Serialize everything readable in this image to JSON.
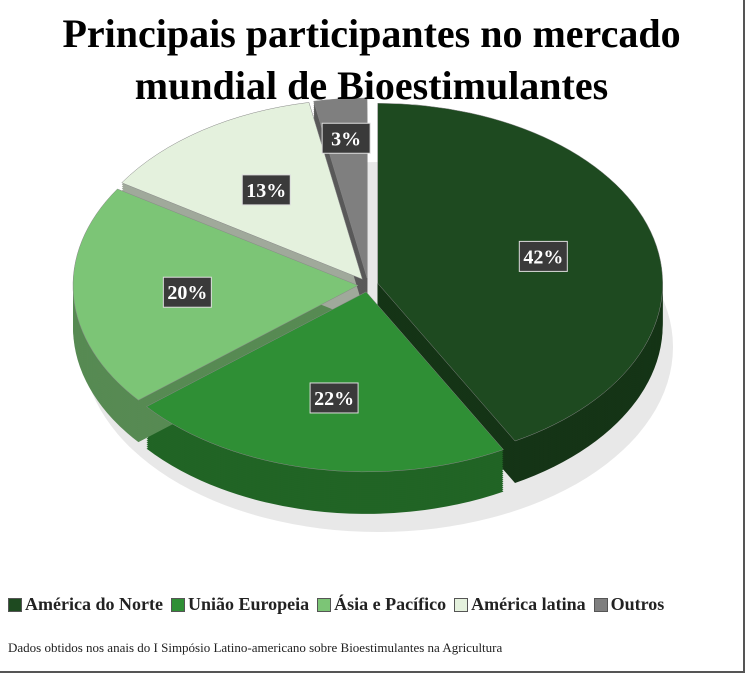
{
  "chart_data": {
    "type": "pie",
    "title": "Principais participantes no mercado mundial de Bioestimulantes",
    "categories": [
      "América do Norte",
      "União Europeia",
      "Ásia e Pacífico",
      "América latina",
      "Outros"
    ],
    "values": [
      42,
      22,
      20,
      13,
      3
    ],
    "value_labels": [
      "42%",
      "22%",
      "20%",
      "13%",
      "3%"
    ],
    "colors": [
      "#1e4a20",
      "#2f8f35",
      "#7cc576",
      "#e4f1dd",
      "#7f7f7f"
    ],
    "note": "Dados obtidos nos anais do I Simpósio Latino-americano sobre Bioestimulantes na Agricultura"
  }
}
